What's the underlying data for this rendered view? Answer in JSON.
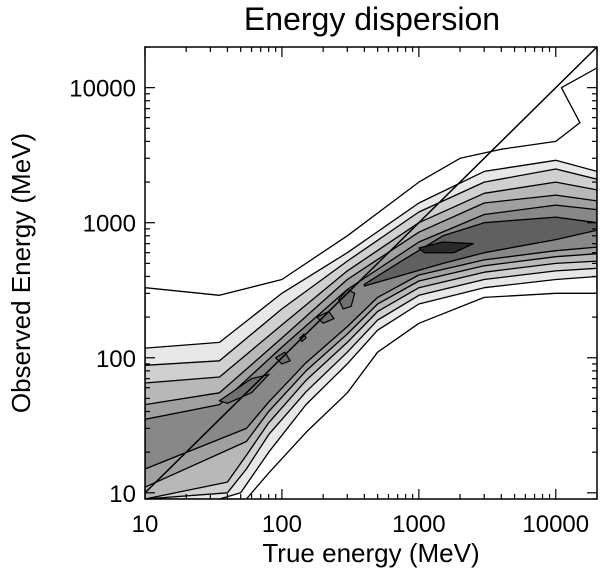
{
  "chart_data": {
    "type": "contour",
    "title": "Energy dispersion",
    "xlabel": "True energy (MeV)",
    "ylabel": "Observed Energy (MeV)",
    "x_scale": "log",
    "y_scale": "log",
    "xlim": [
      10,
      20000
    ],
    "ylim": [
      9,
      20000
    ],
    "x_ticks": [
      10,
      100,
      1000,
      10000
    ],
    "x_tick_labels": [
      "10",
      "100",
      "1000",
      "10000"
    ],
    "y_ticks": [
      10,
      100,
      1000,
      10000
    ],
    "y_tick_labels": [
      "10",
      "100",
      "1000",
      "10000"
    ],
    "grid": false,
    "legend": "none",
    "diagonal_line": {
      "x": [
        10,
        20000
      ],
      "y": [
        10,
        20000
      ]
    },
    "contour_levels": [
      {
        "level": 1,
        "fill": "#ffffff",
        "outline": [
          [
            10,
            330
          ],
          [
            35,
            290
          ],
          [
            100,
            380
          ],
          [
            300,
            800
          ],
          [
            1000,
            2000
          ],
          [
            2000,
            3000
          ],
          [
            4000,
            3500
          ],
          [
            10000,
            4000
          ],
          [
            15000,
            5500
          ],
          [
            11000,
            10000
          ],
          [
            20000,
            14000
          ],
          [
            20000,
            300
          ],
          [
            10000,
            300
          ],
          [
            3000,
            280
          ],
          [
            1000,
            180
          ],
          [
            500,
            110
          ],
          [
            300,
            55
          ],
          [
            150,
            28
          ],
          [
            80,
            14
          ],
          [
            55,
            9
          ],
          [
            10,
            9
          ]
        ]
      },
      {
        "level": 2,
        "fill": "#e8e8e8",
        "outline": [
          [
            10,
            118
          ],
          [
            35,
            130
          ],
          [
            100,
            300
          ],
          [
            300,
            600
          ],
          [
            1000,
            1400
          ],
          [
            3000,
            2400
          ],
          [
            10000,
            2900
          ],
          [
            20000,
            2400
          ],
          [
            20000,
            400
          ],
          [
            10000,
            380
          ],
          [
            3000,
            330
          ],
          [
            1000,
            250
          ],
          [
            500,
            160
          ],
          [
            300,
            90
          ],
          [
            150,
            45
          ],
          [
            80,
            20
          ],
          [
            50,
            10
          ],
          [
            35,
            9
          ],
          [
            10,
            9
          ]
        ]
      },
      {
        "level": 3,
        "fill": "#d0d0d0",
        "outline": [
          [
            10,
            88
          ],
          [
            35,
            95
          ],
          [
            100,
            230
          ],
          [
            300,
            520
          ],
          [
            1000,
            1200
          ],
          [
            3000,
            2000
          ],
          [
            10000,
            2500
          ],
          [
            20000,
            2100
          ],
          [
            20000,
            460
          ],
          [
            10000,
            440
          ],
          [
            3000,
            380
          ],
          [
            1000,
            290
          ],
          [
            500,
            190
          ],
          [
            300,
            110
          ],
          [
            150,
            56
          ],
          [
            80,
            27
          ],
          [
            55,
            15
          ],
          [
            40,
            10
          ],
          [
            10,
            9
          ]
        ]
      },
      {
        "level": 4,
        "fill": "#b8b8b8",
        "outline": [
          [
            10,
            65
          ],
          [
            35,
            72
          ],
          [
            100,
            175
          ],
          [
            300,
            440
          ],
          [
            1000,
            1000
          ],
          [
            3000,
            1650
          ],
          [
            10000,
            2000
          ],
          [
            20000,
            1750
          ],
          [
            20000,
            520
          ],
          [
            10000,
            500
          ],
          [
            3000,
            430
          ],
          [
            1000,
            330
          ],
          [
            500,
            220
          ],
          [
            300,
            130
          ],
          [
            150,
            68
          ],
          [
            80,
            33
          ],
          [
            55,
            19
          ],
          [
            40,
            12
          ],
          [
            10,
            9
          ]
        ]
      },
      {
        "level": 5,
        "fill": "#a0a0a0",
        "outline": [
          [
            10,
            45
          ],
          [
            35,
            55
          ],
          [
            100,
            140
          ],
          [
            300,
            380
          ],
          [
            1000,
            850
          ],
          [
            3000,
            1400
          ],
          [
            10000,
            1600
          ],
          [
            20000,
            1450
          ],
          [
            20000,
            590
          ],
          [
            10000,
            560
          ],
          [
            3000,
            480
          ],
          [
            1000,
            370
          ],
          [
            500,
            250
          ],
          [
            300,
            150
          ],
          [
            150,
            80
          ],
          [
            80,
            40
          ],
          [
            55,
            24
          ],
          [
            10,
            11
          ]
        ]
      },
      {
        "level": 6,
        "fill": "#888888",
        "outline": [
          [
            10,
            35
          ],
          [
            35,
            45
          ],
          [
            100,
            120
          ],
          [
            300,
            320
          ],
          [
            1000,
            720
          ],
          [
            3000,
            1150
          ],
          [
            10000,
            1350
          ],
          [
            20000,
            1250
          ],
          [
            20000,
            660
          ],
          [
            10000,
            620
          ],
          [
            3000,
            530
          ],
          [
            1000,
            410
          ],
          [
            500,
            280
          ],
          [
            300,
            170
          ],
          [
            150,
            92
          ],
          [
            80,
            47
          ],
          [
            55,
            30
          ],
          [
            10,
            15
          ]
        ]
      },
      {
        "level": 7,
        "fill": "#606060",
        "outline": [
          [
            400,
            350
          ],
          [
            700,
            500
          ],
          [
            1500,
            800
          ],
          [
            3000,
            1000
          ],
          [
            10000,
            1100
          ],
          [
            20000,
            1000
          ],
          [
            20000,
            880
          ],
          [
            10000,
            750
          ],
          [
            3000,
            600
          ],
          [
            1500,
            500
          ],
          [
            700,
            400
          ],
          [
            400,
            340
          ]
        ]
      },
      {
        "level": 8,
        "fill": "#2a2a2a",
        "outline": [
          [
            1000,
            650
          ],
          [
            1500,
            720
          ],
          [
            2500,
            700
          ],
          [
            1800,
            600
          ],
          [
            1100,
            600
          ]
        ]
      }
    ],
    "ridge_islands": [
      {
        "fill": "#707070",
        "outline": [
          [
            35,
            48
          ],
          [
            60,
            70
          ],
          [
            80,
            75
          ],
          [
            60,
            55
          ],
          [
            40,
            46
          ]
        ]
      },
      {
        "fill": "#707070",
        "outline": [
          [
            90,
            100
          ],
          [
            105,
            110
          ],
          [
            115,
            95
          ],
          [
            100,
            90
          ]
        ]
      },
      {
        "fill": "#707070",
        "outline": [
          [
            135,
            140
          ],
          [
            145,
            150
          ],
          [
            150,
            140
          ],
          [
            140,
            132
          ]
        ]
      },
      {
        "fill": "#707070",
        "outline": [
          [
            180,
            200
          ],
          [
            220,
            220
          ],
          [
            240,
            195
          ],
          [
            200,
            180
          ]
        ]
      },
      {
        "fill": "#707070",
        "outline": [
          [
            260,
            270
          ],
          [
            300,
            320
          ],
          [
            340,
            300
          ],
          [
            320,
            240
          ],
          [
            280,
            230
          ]
        ]
      }
    ]
  }
}
